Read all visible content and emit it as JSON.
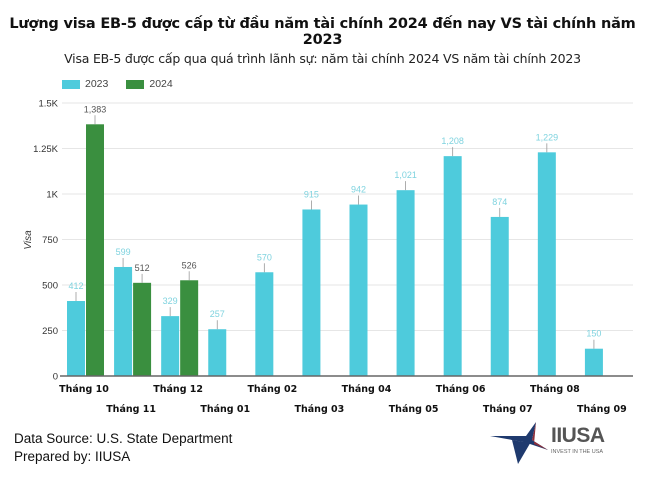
{
  "title": "Lượng visa EB-5 được cấp từ đầu năm tài chính 2024 đến nay VS tài chính năm 2023",
  "footer": {
    "source": "Data Source: U.S. State Department",
    "prepared": "Prepared by: IIUSA"
  },
  "logo": {
    "name": "IIUSA",
    "tagline": "INVEST IN THE USA"
  },
  "colors": {
    "2023": "#4ecbdc",
    "2024": "#3a8f3f",
    "grid": "#e6e6e6",
    "axis": "#666666"
  },
  "chart_data": {
    "type": "bar",
    "title": "Visa EB-5 được cấp qua quá trình lãnh sự: năm tài chính 2024 VS năm tài chính 2023",
    "xlabel": "",
    "ylabel": "Visa",
    "ylim": [
      0,
      1500
    ],
    "yticks": [
      0,
      250,
      500,
      750,
      1000,
      1250,
      1500
    ],
    "ytick_labels": [
      "0",
      "250",
      "500",
      "750",
      "1K",
      "1.25K",
      "1.5K"
    ],
    "grid": true,
    "legend_position": "top-left",
    "categories": [
      "Tháng 10",
      "Tháng 11",
      "Tháng 12",
      "Tháng 01",
      "Tháng 02",
      "Tháng 03",
      "Tháng 04",
      "Tháng 05",
      "Tháng 06",
      "Tháng 07",
      "Tháng 08",
      "Tháng 09"
    ],
    "series": [
      {
        "name": "2023",
        "values": [
          412,
          599,
          329,
          257,
          570,
          915,
          942,
          1021,
          1208,
          874,
          1229,
          150
        ],
        "labels": [
          "412",
          "599",
          "329",
          "257",
          "570",
          "915",
          "942",
          "1,021",
          "1,208",
          "874",
          "1,229",
          "150"
        ]
      },
      {
        "name": "2024",
        "values": [
          1383,
          512,
          526,
          null,
          null,
          null,
          null,
          null,
          null,
          null,
          null,
          null
        ],
        "labels": [
          "1,383",
          "512",
          "526",
          "",
          "",
          "",
          "",
          "",
          "",
          "",
          "",
          ""
        ]
      }
    ]
  }
}
